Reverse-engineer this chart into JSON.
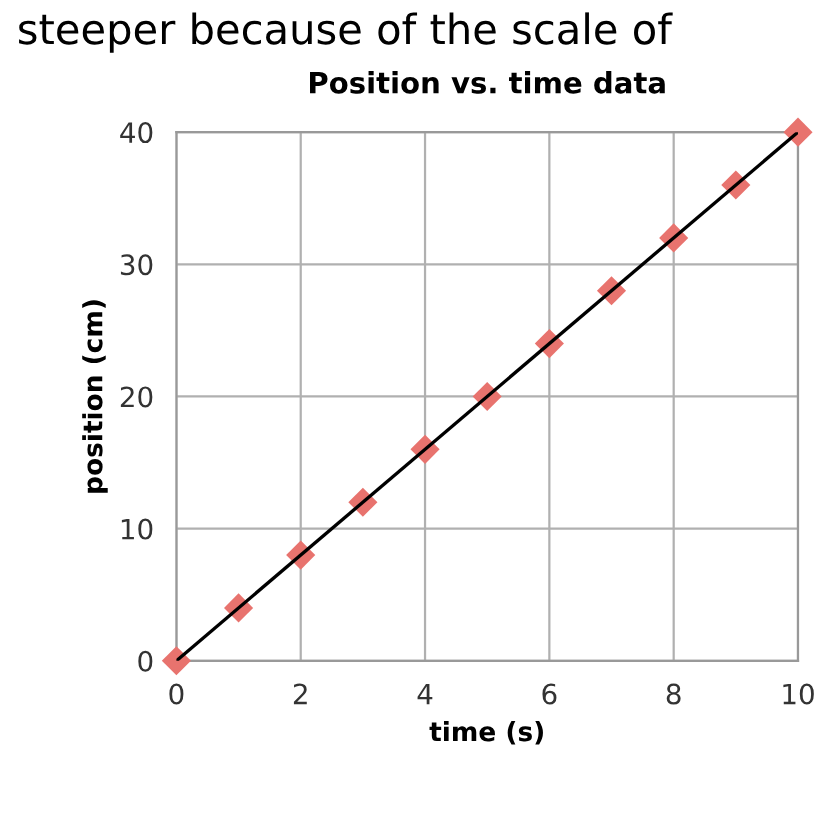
{
  "chart_data": {
    "type": "scatter",
    "title": "Position vs. time data",
    "xlabel": "time (s)",
    "ylabel": "position (cm)",
    "annotations": [
      "steeper because of the scale of"
    ],
    "series": [
      {
        "color": "#e8736e",
        "marker": "diamond",
        "x": [
          0,
          1,
          2,
          3,
          4,
          5,
          6,
          7,
          8,
          9,
          10
        ],
        "values": [
          0,
          4,
          8,
          12,
          16,
          20,
          24,
          28,
          32,
          36,
          40
        ]
      },
      {
        "type": "line",
        "color": "#000000",
        "marker": "none",
        "x": [
          0,
          10
        ],
        "values": [
          0,
          40
        ]
      }
    ],
    "xlim": [
      0,
      10
    ],
    "xticks": [
      0,
      2,
      4,
      6,
      8,
      10
    ],
    "ylim": [
      0,
      40
    ],
    "yticks": [
      0,
      10,
      20,
      30,
      40
    ],
    "grid": true,
    "legend": false
  }
}
